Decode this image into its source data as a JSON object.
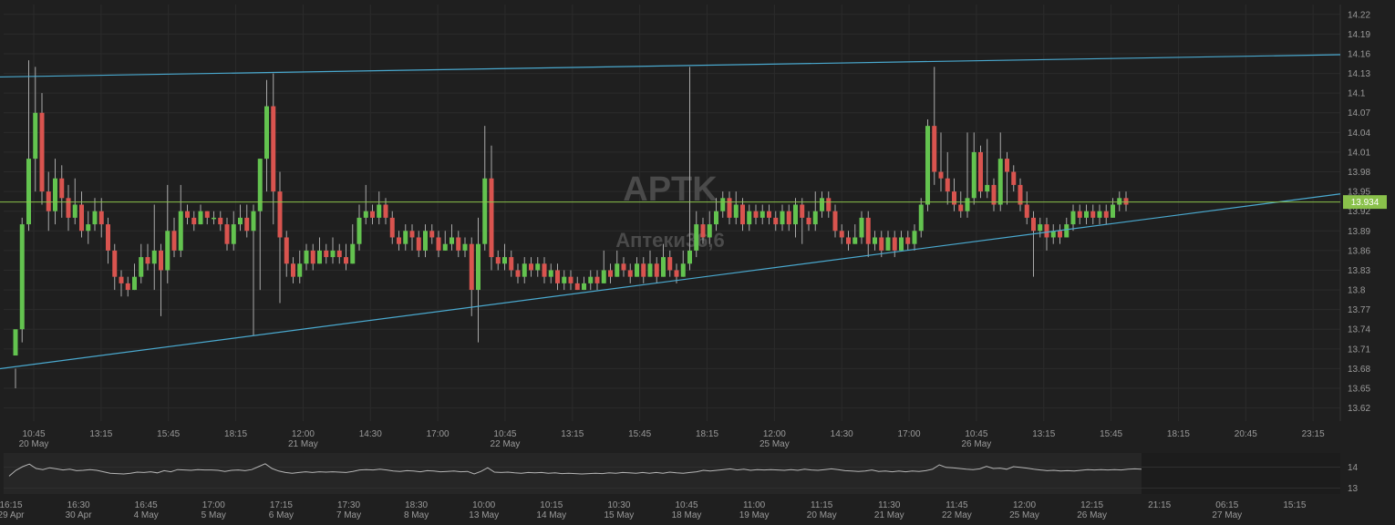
{
  "chart_data": {
    "type": "candlestick",
    "symbol": "APTK",
    "subtitle": "Аптеки36,6",
    "y_range": [
      13.6,
      14.235
    ],
    "y_ticks": [
      "14.22",
      "14.19",
      "14.16",
      "14.13",
      "14.1",
      "14.07",
      "14.04",
      "14.01",
      "13.98",
      "13.95",
      "13.92",
      "13.89",
      "13.86",
      "13.83",
      "13.8",
      "13.77",
      "13.74",
      "13.71",
      "13.68",
      "13.65",
      "13.62"
    ],
    "last_price": "13.934",
    "last_price_value": 13.934,
    "x_ticks": [
      {
        "time": "10:45",
        "date": "20  May"
      },
      {
        "time": "13:15",
        "date": ""
      },
      {
        "time": "15:45",
        "date": ""
      },
      {
        "time": "18:15",
        "date": ""
      },
      {
        "time": "12:00",
        "date": "21  May"
      },
      {
        "time": "14:30",
        "date": ""
      },
      {
        "time": "17:00",
        "date": ""
      },
      {
        "time": "10:45",
        "date": "22  May"
      },
      {
        "time": "13:15",
        "date": ""
      },
      {
        "time": "15:45",
        "date": ""
      },
      {
        "time": "18:15",
        "date": ""
      },
      {
        "time": "12:00",
        "date": "25  May"
      },
      {
        "time": "14:30",
        "date": ""
      },
      {
        "time": "17:00",
        "date": ""
      },
      {
        "time": "10:45",
        "date": "26  May"
      },
      {
        "time": "13:15",
        "date": ""
      },
      {
        "time": "15:45",
        "date": ""
      },
      {
        "time": "18:15",
        "date": ""
      },
      {
        "time": "20:45",
        "date": ""
      },
      {
        "time": "23:15",
        "date": ""
      }
    ],
    "trendlines": [
      {
        "name": "upper",
        "from": {
          "index": 0,
          "price": 14.125
        },
        "to": {
          "index": 191,
          "price": 14.157
        }
      },
      {
        "name": "lower",
        "from": {
          "index": 0,
          "price": 13.683
        },
        "to": {
          "index": 191,
          "price": 13.934
        }
      }
    ],
    "candles": [
      [
        13.7,
        13.74,
        13.68,
        13.65
      ],
      [
        13.74,
        13.9,
        13.91,
        13.72
      ],
      [
        13.9,
        14.0,
        14.15,
        13.89
      ],
      [
        14.0,
        14.07,
        14.14,
        13.95
      ],
      [
        14.07,
        13.95,
        14.1,
        13.93
      ],
      [
        13.95,
        13.92,
        13.98,
        13.89
      ],
      [
        13.92,
        13.97,
        14.0,
        13.9
      ],
      [
        13.97,
        13.94,
        13.99,
        13.91
      ],
      [
        13.94,
        13.91,
        13.96,
        13.89
      ],
      [
        13.91,
        13.93,
        13.97,
        13.9
      ],
      [
        13.93,
        13.89,
        13.95,
        13.88
      ],
      [
        13.89,
        13.9,
        13.92,
        13.87
      ],
      [
        13.9,
        13.92,
        13.94,
        13.89
      ],
      [
        13.92,
        13.9,
        13.94,
        13.88
      ],
      [
        13.9,
        13.86,
        13.91,
        13.84
      ],
      [
        13.86,
        13.82,
        13.87,
        13.8
      ],
      [
        13.82,
        13.81,
        13.83,
        13.79
      ],
      [
        13.81,
        13.8,
        13.82,
        13.79
      ],
      [
        13.8,
        13.82,
        13.84,
        13.8
      ],
      [
        13.82,
        13.85,
        13.87,
        13.81
      ],
      [
        13.85,
        13.84,
        13.87,
        13.83
      ],
      [
        13.84,
        13.86,
        13.93,
        13.8
      ],
      [
        13.86,
        13.83,
        13.87,
        13.76
      ],
      [
        13.83,
        13.89,
        13.96,
        13.81
      ],
      [
        13.89,
        13.86,
        13.91,
        13.85
      ],
      [
        13.86,
        13.92,
        13.96,
        13.85
      ],
      [
        13.92,
        13.91,
        13.93,
        13.9
      ],
      [
        13.91,
        13.9,
        13.92,
        13.89
      ],
      [
        13.9,
        13.92,
        13.93,
        13.9
      ],
      [
        13.92,
        13.91,
        13.92,
        13.9
      ],
      [
        13.91,
        13.91,
        13.92,
        13.9
      ],
      [
        13.91,
        13.9,
        13.92,
        13.89
      ],
      [
        13.9,
        13.87,
        13.91,
        13.86
      ],
      [
        13.87,
        13.9,
        13.92,
        13.86
      ],
      [
        13.9,
        13.91,
        13.93,
        13.89
      ],
      [
        13.91,
        13.89,
        13.93,
        13.88
      ],
      [
        13.89,
        13.92,
        13.93,
        13.73
      ],
      [
        13.92,
        14.0,
        14.0,
        13.8
      ],
      [
        14.0,
        14.08,
        14.12,
        13.95
      ],
      [
        14.08,
        13.95,
        14.13,
        13.9
      ],
      [
        13.95,
        13.88,
        13.98,
        13.78
      ],
      [
        13.88,
        13.84,
        13.89,
        13.82
      ],
      [
        13.84,
        13.82,
        13.85,
        13.81
      ],
      [
        13.82,
        13.84,
        13.86,
        13.81
      ],
      [
        13.84,
        13.86,
        13.87,
        13.83
      ],
      [
        13.86,
        13.84,
        13.87,
        13.83
      ],
      [
        13.84,
        13.86,
        13.88,
        13.84
      ],
      [
        13.86,
        13.85,
        13.87,
        13.84
      ],
      [
        13.85,
        13.86,
        13.88,
        13.84
      ],
      [
        13.86,
        13.85,
        13.87,
        13.84
      ],
      [
        13.85,
        13.84,
        13.87,
        13.83
      ],
      [
        13.84,
        13.87,
        13.9,
        13.84
      ],
      [
        13.87,
        13.91,
        13.93,
        13.86
      ],
      [
        13.91,
        13.92,
        13.96,
        13.9
      ],
      [
        13.92,
        13.91,
        13.93,
        13.9
      ],
      [
        13.91,
        13.93,
        13.95,
        13.9
      ],
      [
        13.93,
        13.91,
        13.94,
        13.9
      ],
      [
        13.91,
        13.88,
        13.92,
        13.87
      ],
      [
        13.88,
        13.87,
        13.89,
        13.86
      ],
      [
        13.87,
        13.89,
        13.9,
        13.86
      ],
      [
        13.89,
        13.88,
        13.9,
        13.86
      ],
      [
        13.88,
        13.86,
        13.89,
        13.85
      ],
      [
        13.86,
        13.89,
        13.9,
        13.85
      ],
      [
        13.89,
        13.88,
        13.9,
        13.87
      ],
      [
        13.88,
        13.86,
        13.89,
        13.85
      ],
      [
        13.86,
        13.87,
        13.89,
        13.86
      ],
      [
        13.87,
        13.88,
        13.9,
        13.86
      ],
      [
        13.88,
        13.86,
        13.89,
        13.85
      ],
      [
        13.86,
        13.87,
        13.88,
        13.85
      ],
      [
        13.87,
        13.8,
        13.88,
        13.76
      ],
      [
        13.8,
        13.87,
        13.91,
        13.72
      ],
      [
        13.87,
        13.97,
        14.05,
        13.86
      ],
      [
        13.97,
        13.85,
        14.02,
        13.83
      ],
      [
        13.85,
        13.84,
        13.86,
        13.83
      ],
      [
        13.84,
        13.85,
        13.87,
        13.83
      ],
      [
        13.85,
        13.83,
        13.86,
        13.82
      ],
      [
        13.83,
        13.82,
        13.84,
        13.81
      ],
      [
        13.82,
        13.84,
        13.85,
        13.81
      ],
      [
        13.84,
        13.83,
        13.85,
        13.82
      ],
      [
        13.83,
        13.84,
        13.85,
        13.82
      ],
      [
        13.84,
        13.82,
        13.85,
        13.81
      ],
      [
        13.82,
        13.83,
        13.84,
        13.81
      ],
      [
        13.83,
        13.81,
        13.84,
        13.8
      ],
      [
        13.81,
        13.82,
        13.83,
        13.8
      ],
      [
        13.82,
        13.81,
        13.83,
        13.8
      ],
      [
        13.81,
        13.8,
        13.82,
        13.8
      ],
      [
        13.8,
        13.81,
        13.82,
        13.8
      ],
      [
        13.81,
        13.82,
        13.83,
        13.8
      ],
      [
        13.82,
        13.81,
        13.83,
        13.8
      ],
      [
        13.81,
        13.83,
        13.86,
        13.81
      ],
      [
        13.83,
        13.82,
        13.84,
        13.81
      ],
      [
        13.82,
        13.84,
        13.86,
        13.82
      ],
      [
        13.84,
        13.83,
        13.85,
        13.82
      ],
      [
        13.83,
        13.82,
        13.84,
        13.81
      ],
      [
        13.82,
        13.84,
        13.85,
        13.82
      ],
      [
        13.84,
        13.82,
        13.85,
        13.81
      ],
      [
        13.82,
        13.84,
        13.86,
        13.82
      ],
      [
        13.84,
        13.82,
        13.85,
        13.81
      ],
      [
        13.82,
        13.85,
        13.87,
        13.82
      ],
      [
        13.85,
        13.83,
        13.86,
        13.82
      ],
      [
        13.83,
        13.82,
        13.84,
        13.81
      ],
      [
        13.82,
        13.84,
        13.86,
        13.82
      ],
      [
        13.84,
        13.86,
        14.14,
        13.83
      ],
      [
        13.86,
        13.9,
        13.92,
        13.85
      ],
      [
        13.9,
        13.88,
        13.91,
        13.87
      ],
      [
        13.88,
        13.9,
        13.92,
        13.87
      ],
      [
        13.9,
        13.92,
        13.94,
        13.89
      ],
      [
        13.92,
        13.94,
        13.95,
        13.91
      ],
      [
        13.94,
        13.91,
        13.95,
        13.9
      ],
      [
        13.91,
        13.93,
        13.95,
        13.9
      ],
      [
        13.93,
        13.9,
        13.94,
        13.89
      ],
      [
        13.9,
        13.92,
        13.93,
        13.89
      ],
      [
        13.92,
        13.91,
        13.93,
        13.9
      ],
      [
        13.91,
        13.92,
        13.93,
        13.9
      ],
      [
        13.92,
        13.91,
        13.93,
        13.9
      ],
      [
        13.91,
        13.9,
        13.92,
        13.89
      ],
      [
        13.9,
        13.92,
        13.93,
        13.89
      ],
      [
        13.92,
        13.9,
        13.93,
        13.89
      ],
      [
        13.9,
        13.93,
        13.94,
        13.88
      ],
      [
        13.93,
        13.91,
        13.94,
        13.87
      ],
      [
        13.91,
        13.9,
        13.92,
        13.89
      ],
      [
        13.9,
        13.92,
        13.95,
        13.89
      ],
      [
        13.92,
        13.94,
        13.95,
        13.91
      ],
      [
        13.94,
        13.92,
        13.95,
        13.91
      ],
      [
        13.92,
        13.89,
        13.93,
        13.88
      ],
      [
        13.89,
        13.88,
        13.9,
        13.87
      ],
      [
        13.88,
        13.87,
        13.89,
        13.86
      ],
      [
        13.87,
        13.88,
        13.9,
        13.87
      ],
      [
        13.88,
        13.91,
        13.92,
        13.87
      ],
      [
        13.91,
        13.87,
        13.92,
        13.85
      ],
      [
        13.87,
        13.88,
        13.89,
        13.86
      ],
      [
        13.88,
        13.86,
        13.89,
        13.85
      ],
      [
        13.86,
        13.88,
        13.89,
        13.86
      ],
      [
        13.88,
        13.86,
        13.89,
        13.85
      ],
      [
        13.86,
        13.88,
        13.89,
        13.86
      ],
      [
        13.88,
        13.87,
        13.89,
        13.86
      ],
      [
        13.87,
        13.89,
        13.9,
        13.86
      ],
      [
        13.89,
        13.93,
        13.94,
        13.88
      ],
      [
        13.93,
        14.05,
        14.06,
        13.92
      ],
      [
        14.05,
        13.98,
        14.14,
        13.96
      ],
      [
        13.98,
        13.97,
        14.04,
        13.95
      ],
      [
        13.97,
        13.95,
        14.01,
        13.93
      ],
      [
        13.95,
        13.93,
        13.97,
        13.92
      ],
      [
        13.93,
        13.92,
        13.95,
        13.91
      ],
      [
        13.92,
        13.94,
        14.04,
        13.91
      ],
      [
        13.94,
        14.01,
        14.04,
        13.93
      ],
      [
        14.01,
        13.95,
        14.02,
        13.94
      ],
      [
        13.95,
        13.96,
        14.03,
        13.94
      ],
      [
        13.96,
        13.93,
        13.97,
        13.92
      ],
      [
        13.93,
        14.0,
        14.04,
        13.92
      ],
      [
        14.0,
        13.98,
        14.01,
        13.93
      ],
      [
        13.98,
        13.96,
        13.99,
        13.95
      ],
      [
        13.96,
        13.93,
        13.97,
        13.92
      ],
      [
        13.93,
        13.91,
        13.95,
        13.9
      ],
      [
        13.91,
        13.89,
        13.92,
        13.82
      ],
      [
        13.89,
        13.9,
        13.91,
        13.88
      ],
      [
        13.9,
        13.88,
        13.91,
        13.86
      ],
      [
        13.88,
        13.89,
        13.9,
        13.87
      ],
      [
        13.89,
        13.88,
        13.9,
        13.87
      ],
      [
        13.88,
        13.9,
        13.91,
        13.88
      ],
      [
        13.9,
        13.92,
        13.93,
        13.89
      ],
      [
        13.92,
        13.91,
        13.93,
        13.9
      ],
      [
        13.91,
        13.92,
        13.93,
        13.9
      ],
      [
        13.92,
        13.91,
        13.93,
        13.9
      ],
      [
        13.91,
        13.92,
        13.93,
        13.9
      ],
      [
        13.92,
        13.91,
        13.93,
        13.9
      ],
      [
        13.91,
        13.93,
        13.94,
        13.91
      ],
      [
        13.93,
        13.94,
        13.95,
        13.92
      ],
      [
        13.94,
        13.93,
        13.95,
        13.92
      ]
    ],
    "overview": {
      "y_ticks": [
        "14",
        "13"
      ],
      "x_ticks": [
        {
          "time": "16:15",
          "date": "29  Apr"
        },
        {
          "time": "16:30",
          "date": "30  Apr"
        },
        {
          "time": "16:45",
          "date": "4  May"
        },
        {
          "time": "17:00",
          "date": "5  May"
        },
        {
          "time": "17:15",
          "date": "6  May"
        },
        {
          "time": "17:30",
          "date": "7  May"
        },
        {
          "time": "18:30",
          "date": "8  May"
        },
        {
          "time": "10:00",
          "date": "13  May"
        },
        {
          "time": "10:15",
          "date": "14  May"
        },
        {
          "time": "10:30",
          "date": "15  May"
        },
        {
          "time": "10:45",
          "date": "18  May"
        },
        {
          "time": "11:00",
          "date": "19  May"
        },
        {
          "time": "11:15",
          "date": "20  May"
        },
        {
          "time": "11:30",
          "date": "21  May"
        },
        {
          "time": "11:45",
          "date": "22  May"
        },
        {
          "time": "12:00",
          "date": "25  May"
        },
        {
          "time": "12:15",
          "date": "26  May"
        },
        {
          "time": "21:15",
          "date": ""
        },
        {
          "time": "06:15",
          "date": "27  May"
        },
        {
          "time": "15:15",
          "date": ""
        }
      ]
    }
  }
}
